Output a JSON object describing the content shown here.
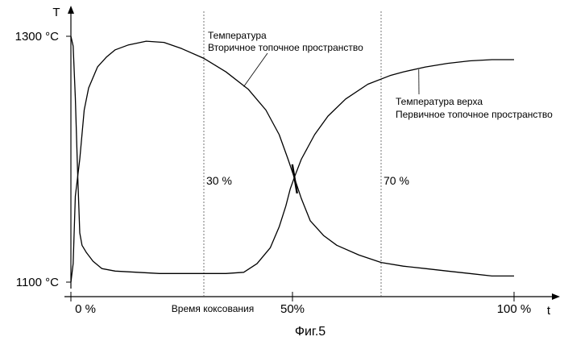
{
  "chart_data": {
    "type": "line",
    "title": "",
    "caption": "Фиг.5",
    "xlabel": "t",
    "ylabel": "T",
    "xlabel_center": "Время коксования",
    "x_unit": "%",
    "y_unit": "°C",
    "xlim": [
      -1,
      108
    ],
    "ylim": [
      1096,
      1310
    ],
    "x_ticks": [
      {
        "value": 0,
        "label": "0 %"
      },
      {
        "value": 50,
        "label": "50%"
      },
      {
        "value": 100,
        "label": "100 %"
      }
    ],
    "y_ticks": [
      {
        "value": 1100,
        "label": "1100 °C"
      },
      {
        "value": 1300,
        "label": "1300 °C"
      }
    ],
    "guides": [
      {
        "x": 30,
        "label": "30 %"
      },
      {
        "x": 70,
        "label": "70 %"
      }
    ],
    "crossing": {
      "x": 50.5,
      "y": 1184
    },
    "series": [
      {
        "name": "Температура Вторичное топочное пространство",
        "label_lines": [
          "Температура",
          "Вторичное топочное пространство"
        ],
        "label_anchor": {
          "x": 41,
          "y": 1273
        },
        "points": [
          [
            0,
            1300
          ],
          [
            0.5,
            1292
          ],
          [
            1,
            1250
          ],
          [
            1.5,
            1190
          ],
          [
            2,
            1140
          ],
          [
            2.5,
            1130
          ],
          [
            3.5,
            1124
          ],
          [
            5,
            1117
          ],
          [
            7,
            1111
          ],
          [
            10,
            1109
          ],
          [
            15,
            1108
          ],
          [
            20,
            1107
          ],
          [
            25,
            1107
          ],
          [
            30,
            1107
          ],
          [
            35,
            1107
          ],
          [
            39,
            1108
          ],
          [
            42,
            1115
          ],
          [
            45,
            1128
          ],
          [
            47,
            1145
          ],
          [
            48.5,
            1162
          ],
          [
            49.5,
            1176
          ],
          [
            50.5,
            1186
          ],
          [
            52,
            1200
          ],
          [
            55,
            1220
          ],
          [
            58,
            1235
          ],
          [
            62,
            1249
          ],
          [
            67,
            1261
          ],
          [
            72,
            1268
          ],
          [
            75,
            1271
          ],
          [
            80,
            1275
          ],
          [
            85,
            1278
          ],
          [
            90,
            1280
          ],
          [
            95,
            1281
          ],
          [
            100,
            1281
          ]
        ]
      },
      {
        "name": "Температура верха Первичное топочное пространство",
        "label_lines": [
          "Температура верха",
          "Первичное топочное пространство"
        ],
        "label_anchor": {
          "x": 80,
          "y": 1262
        },
        "points": [
          [
            0,
            1100
          ],
          [
            0.5,
            1115
          ],
          [
            1,
            1170
          ],
          [
            2,
            1200
          ],
          [
            3,
            1240
          ],
          [
            4,
            1258
          ],
          [
            6,
            1275
          ],
          [
            8,
            1283
          ],
          [
            10,
            1289
          ],
          [
            13,
            1293
          ],
          [
            17,
            1296
          ],
          [
            21,
            1295
          ],
          [
            25,
            1290
          ],
          [
            30,
            1282
          ],
          [
            35,
            1271
          ],
          [
            40,
            1257
          ],
          [
            44,
            1240
          ],
          [
            47,
            1220
          ],
          [
            49,
            1200
          ],
          [
            50.5,
            1184
          ],
          [
            52,
            1168
          ],
          [
            54,
            1150
          ],
          [
            57,
            1138
          ],
          [
            60,
            1130
          ],
          [
            65,
            1122
          ],
          [
            70,
            1116
          ],
          [
            75,
            1113
          ],
          [
            80,
            1111
          ],
          [
            85,
            1109
          ],
          [
            90,
            1107
          ],
          [
            95,
            1105
          ],
          [
            100,
            1105
          ]
        ]
      }
    ]
  }
}
